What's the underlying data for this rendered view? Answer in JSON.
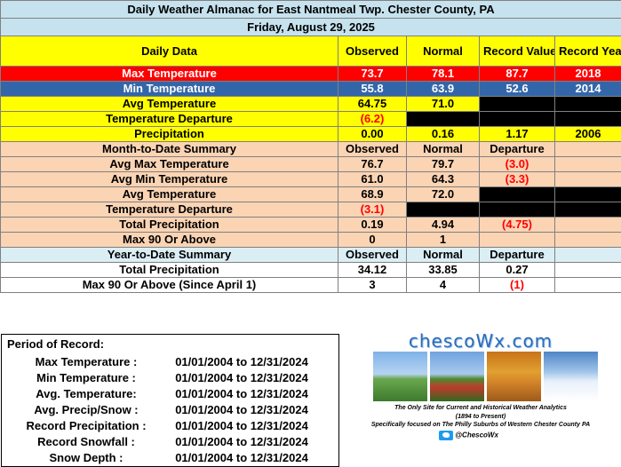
{
  "title": "Daily Weather Almanac for East Nantmeal Twp.  Chester County, PA",
  "date": "Friday, August 29, 2025",
  "daily": {
    "headers": [
      "Daily Data",
      "Observed",
      "Normal",
      "Record Value",
      "Record Year"
    ],
    "rows": [
      {
        "label": "Max Temperature",
        "observed": "73.7",
        "normal": "78.1",
        "record": "87.7",
        "year": "2018"
      },
      {
        "label": "Min Temperature",
        "observed": "55.8",
        "normal": "63.9",
        "record": "52.6",
        "year": "2014"
      },
      {
        "label": "Avg Temperature",
        "observed": "64.75",
        "normal": "71.0"
      },
      {
        "label": "Temperature Departure",
        "observed": "(6.2)"
      },
      {
        "label": "Precipitation",
        "observed": "0.00",
        "normal": "0.16",
        "record": "1.17",
        "year": "2006"
      }
    ]
  },
  "month": {
    "headers": [
      "Month-to-Date Summary",
      "Observed",
      "Normal",
      "Departure"
    ],
    "rows": [
      {
        "label": "Avg Max Temperature",
        "observed": "76.7",
        "normal": "79.7",
        "departure": "(3.0)"
      },
      {
        "label": "Avg Min Temperature",
        "observed": "61.0",
        "normal": "64.3",
        "departure": "(3.3)"
      },
      {
        "label": "Avg Temperature",
        "observed": "68.9",
        "normal": "72.0"
      },
      {
        "label": "Temperature Departure",
        "observed": "(3.1)"
      },
      {
        "label": "Total Precipitation",
        "observed": "0.19",
        "normal": "4.94",
        "departure": "(4.75)"
      },
      {
        "label": "Max 90 Or Above",
        "observed": "0",
        "normal": "1"
      }
    ]
  },
  "year": {
    "headers": [
      "Year-to-Date Summary",
      "Observed",
      "Normal",
      "Departure"
    ],
    "rows": [
      {
        "label": "Total Precipitation",
        "observed": "34.12",
        "normal": "33.85",
        "departure": "0.27"
      },
      {
        "label": "Max 90 Or Above (Since April 1)",
        "observed": "3",
        "normal": "4",
        "departure": "(1)"
      }
    ]
  },
  "period": {
    "title": "Period of Record:",
    "rows": [
      {
        "label": "Max Temperature :",
        "range": "01/01/2004 to 12/31/2024"
      },
      {
        "label": "Min Temperature :",
        "range": "01/01/2004 to 12/31/2024"
      },
      {
        "label": "Avg. Temperature:",
        "range": "01/01/2004 to 12/31/2024"
      },
      {
        "label": "Avg. Precip/Snow :",
        "range": "01/01/2004 to 12/31/2024"
      },
      {
        "label": "Record Precipitation :",
        "range": "01/01/2004 to 12/31/2024"
      },
      {
        "label": "Record Snowfall :",
        "range": "01/01/2004 to 12/31/2024"
      },
      {
        "label": "Snow Depth :",
        "range": "01/01/2004 to 12/31/2024"
      }
    ]
  },
  "ad": {
    "logo": "chescoWx.com",
    "line1": "The Only Site for Current and Historical Weather Analytics",
    "line2": "(1894 to Present)",
    "line3": "Specifically focused on The Philly Suburbs of Western Chester County PA",
    "twitter": "@ChescoWx",
    "icons": [
      "twitter-icon"
    ]
  },
  "colors": {
    "header_blue": "#c6e2ee",
    "yellow": "#ffff00",
    "max_red": "#ff0000",
    "min_blue": "#3366a8",
    "peach": "#fbd4b4",
    "light_blue": "#dbeef4",
    "departure_red": "#ff0000"
  }
}
